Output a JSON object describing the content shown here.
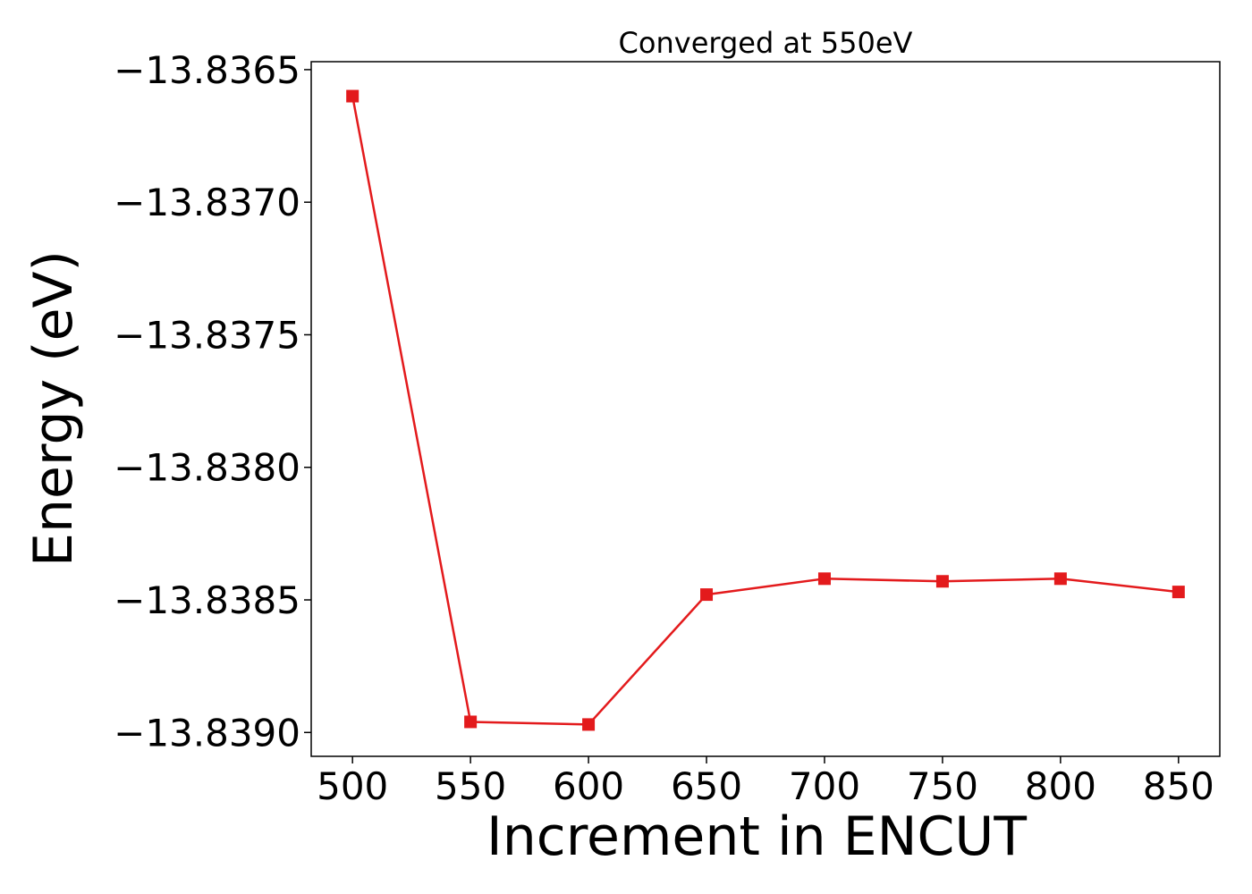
{
  "chart_data": {
    "type": "line",
    "title": "Converged at 550eV",
    "xlabel": "Increment in ENCUT",
    "ylabel": "Energy (eV)",
    "x": [
      500,
      550,
      600,
      650,
      700,
      750,
      800,
      850
    ],
    "y": [
      -13.8366,
      -13.83896,
      -13.83897,
      -13.83848,
      -13.83842,
      -13.83843,
      -13.83842,
      -13.83847
    ],
    "xticks": [
      500,
      550,
      600,
      650,
      700,
      750,
      800,
      850
    ],
    "xtick_labels": [
      "500",
      "550",
      "600",
      "650",
      "700",
      "750",
      "800",
      "850"
    ],
    "yticks": [
      -13.8365,
      -13.837,
      -13.8375,
      -13.838,
      -13.8385,
      -13.839
    ],
    "ytick_labels": [
      "−13.8365",
      "−13.8370",
      "−13.8375",
      "−13.8380",
      "−13.8385",
      "−13.8390"
    ],
    "xlim": [
      482.5,
      867.5
    ],
    "ylim": [
      -13.83909,
      -13.83647
    ],
    "marker": "square",
    "grid": false,
    "color": "#e31a1c"
  }
}
